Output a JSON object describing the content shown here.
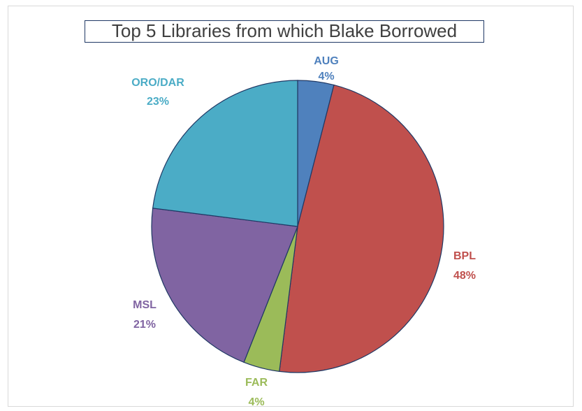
{
  "chart_data": {
    "type": "pie",
    "title": "Top 5 Libraries from which Blake Borrowed",
    "slices": [
      {
        "label": "AUG",
        "value": 4,
        "value_label": "4%",
        "color": "#4F81BD"
      },
      {
        "label": "BPL",
        "value": 48,
        "value_label": "48%",
        "color": "#C0504D"
      },
      {
        "label": "FAR",
        "value": 4,
        "value_label": "4%",
        "color": "#9BBB59"
      },
      {
        "label": "MSL",
        "value": 21,
        "value_label": "21%",
        "color": "#8064A2"
      },
      {
        "label": "ORO/DAR",
        "value": 23,
        "value_label": "23%",
        "color": "#4BACC6"
      }
    ],
    "start_angle": "12 o'clock",
    "direction": "clockwise",
    "slice_border_color": "#1F3864",
    "legend": "none"
  }
}
